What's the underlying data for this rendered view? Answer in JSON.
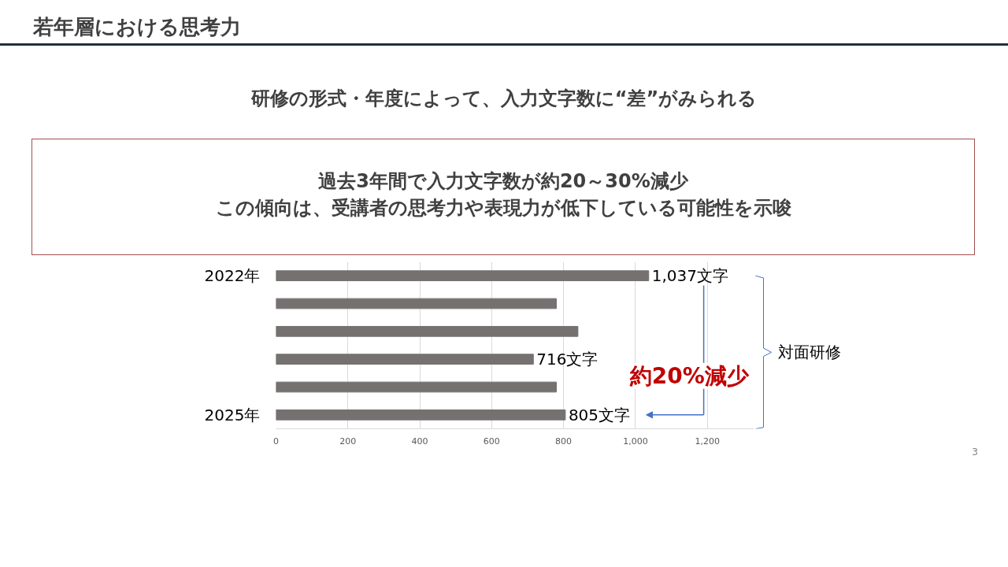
{
  "chart_data": {
    "type": "bar",
    "orientation": "horizontal",
    "title": "若年層における思考力",
    "subtitle": "研修の形式・年度によって、入力文字数に“差”がみられる",
    "categories": [
      "2022年",
      null,
      null,
      null,
      null,
      "2025年"
    ],
    "values": [
      1037,
      780,
      840,
      716,
      780,
      805
    ],
    "color": "#767171",
    "value_labels": [
      "1,037文字",
      null,
      null,
      "716文字",
      null,
      "805文字"
    ],
    "xlim": [
      0,
      1330
    ],
    "xticks": [
      0,
      200,
      400,
      600,
      800,
      {
        "value": 1000,
        "label": "1,000"
      },
      {
        "value": 1200,
        "label": "1,200"
      }
    ],
    "grid": "x",
    "annotations": [
      "過去3年間で入力文字数が約20～30%減少",
      "この傾向は、受講者の思考力や表現力が低下している可能性を示唆",
      "約20%減少",
      "対面研修",
      "3"
    ]
  }
}
